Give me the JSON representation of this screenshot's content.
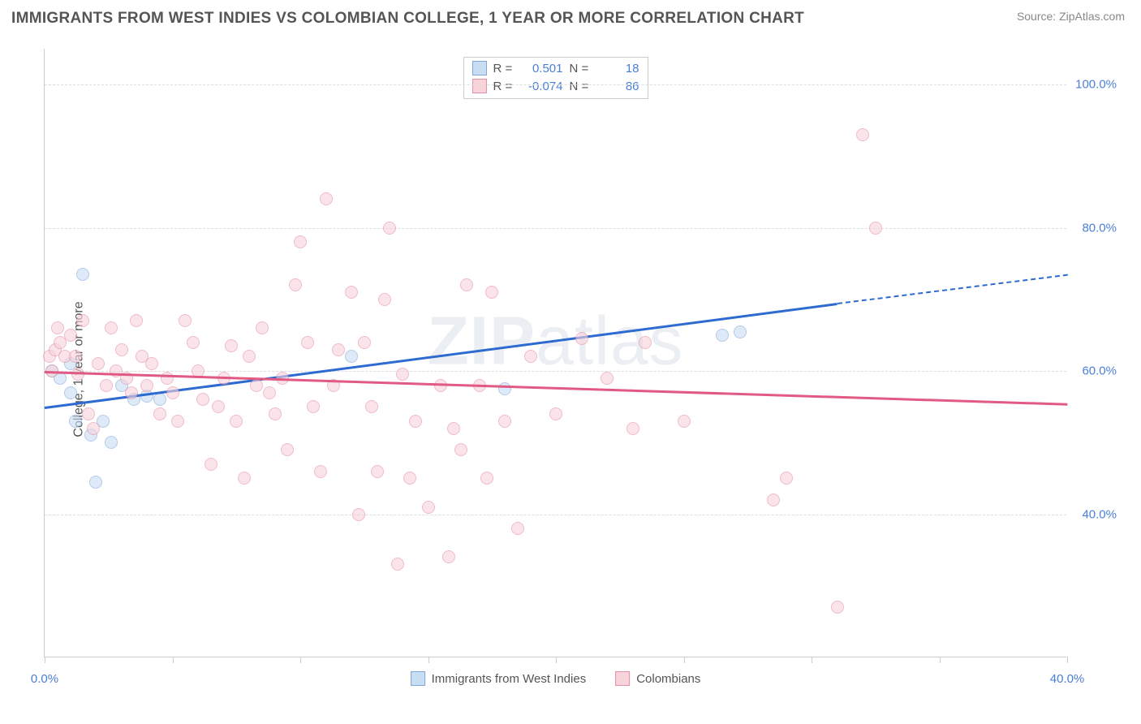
{
  "title": "IMMIGRANTS FROM WEST INDIES VS COLOMBIAN COLLEGE, 1 YEAR OR MORE CORRELATION CHART",
  "source": "Source: ZipAtlas.com",
  "watermark_zip": "ZIP",
  "watermark_atlas": "atlas",
  "y_axis_label": "College, 1 year or more",
  "chart": {
    "type": "scatter",
    "xlim": [
      0,
      40
    ],
    "ylim": [
      20,
      105
    ],
    "x_ticks_pct": [
      0,
      12.5,
      25,
      37.5,
      50,
      62.5,
      75,
      87.5,
      100
    ],
    "x_tick_labels": [
      {
        "pos": 0,
        "text": "0.0%"
      },
      {
        "pos": 100,
        "text": "40.0%"
      }
    ],
    "y_gridlines": [
      {
        "v": 40,
        "label": "40.0%"
      },
      {
        "v": 60,
        "label": "60.0%"
      },
      {
        "v": 80,
        "label": "80.0%"
      },
      {
        "v": 100,
        "label": "100.0%"
      }
    ],
    "grid_color": "#dddddd",
    "axis_color": "#cccccc",
    "background_color": "#ffffff",
    "tick_label_color": "#4a7fd8",
    "marker_diameter": 16,
    "marker_opacity": 0.6,
    "trend_line_width": 3,
    "series": [
      {
        "name": "Immigrants from West Indies",
        "marker_fill": "#c9ddf3",
        "marker_stroke": "#7fa8d9",
        "line_color": "#2e6bd1",
        "R": "0.501",
        "N": "18",
        "trend": {
          "x1": 0,
          "y1": 55,
          "x2": 31,
          "y2": 69.5,
          "dash_x2": 40,
          "dash_y2": 73.5
        },
        "points": [
          {
            "x": 0.3,
            "y": 60
          },
          {
            "x": 0.6,
            "y": 59
          },
          {
            "x": 1.0,
            "y": 61
          },
          {
            "x": 1.2,
            "y": 53
          },
          {
            "x": 1.5,
            "y": 73.5
          },
          {
            "x": 1.8,
            "y": 51
          },
          {
            "x": 2.0,
            "y": 44.5
          },
          {
            "x": 2.3,
            "y": 53
          },
          {
            "x": 2.6,
            "y": 50
          },
          {
            "x": 3.0,
            "y": 58
          },
          {
            "x": 3.5,
            "y": 56
          },
          {
            "x": 4.0,
            "y": 56.5
          },
          {
            "x": 4.5,
            "y": 56
          },
          {
            "x": 12.0,
            "y": 62
          },
          {
            "x": 18.0,
            "y": 57.5
          },
          {
            "x": 26.5,
            "y": 65
          },
          {
            "x": 27.2,
            "y": 65.5
          },
          {
            "x": 1.0,
            "y": 57
          }
        ]
      },
      {
        "name": "Colombians",
        "marker_fill": "#f7d3dc",
        "marker_stroke": "#e68fa6",
        "line_color": "#e05a84",
        "R": "-0.074",
        "N": "86",
        "trend": {
          "x1": 0,
          "y1": 60,
          "x2": 40,
          "y2": 55.5
        },
        "points": [
          {
            "x": 0.2,
            "y": 62
          },
          {
            "x": 0.4,
            "y": 63
          },
          {
            "x": 0.5,
            "y": 66
          },
          {
            "x": 0.6,
            "y": 64
          },
          {
            "x": 0.8,
            "y": 62
          },
          {
            "x": 1.0,
            "y": 65
          },
          {
            "x": 1.2,
            "y": 62
          },
          {
            "x": 1.3,
            "y": 59.5
          },
          {
            "x": 1.5,
            "y": 67
          },
          {
            "x": 1.7,
            "y": 54
          },
          {
            "x": 1.9,
            "y": 52
          },
          {
            "x": 2.1,
            "y": 61
          },
          {
            "x": 2.4,
            "y": 58
          },
          {
            "x": 2.6,
            "y": 66
          },
          {
            "x": 2.8,
            "y": 60
          },
          {
            "x": 3.0,
            "y": 63
          },
          {
            "x": 3.2,
            "y": 59
          },
          {
            "x": 3.4,
            "y": 57
          },
          {
            "x": 3.6,
            "y": 67
          },
          {
            "x": 3.8,
            "y": 62
          },
          {
            "x": 4.0,
            "y": 58
          },
          {
            "x": 4.2,
            "y": 61
          },
          {
            "x": 4.5,
            "y": 54
          },
          {
            "x": 4.8,
            "y": 59
          },
          {
            "x": 5.0,
            "y": 57
          },
          {
            "x": 5.2,
            "y": 53
          },
          {
            "x": 5.5,
            "y": 67
          },
          {
            "x": 5.8,
            "y": 64
          },
          {
            "x": 6.0,
            "y": 60
          },
          {
            "x": 6.2,
            "y": 56
          },
          {
            "x": 6.5,
            "y": 47
          },
          {
            "x": 6.8,
            "y": 55
          },
          {
            "x": 7.0,
            "y": 59
          },
          {
            "x": 7.3,
            "y": 63.5
          },
          {
            "x": 7.5,
            "y": 53
          },
          {
            "x": 7.8,
            "y": 45
          },
          {
            "x": 8.0,
            "y": 62
          },
          {
            "x": 8.3,
            "y": 58
          },
          {
            "x": 8.5,
            "y": 66
          },
          {
            "x": 8.8,
            "y": 57
          },
          {
            "x": 9.0,
            "y": 54
          },
          {
            "x": 9.3,
            "y": 59
          },
          {
            "x": 9.5,
            "y": 49
          },
          {
            "x": 9.8,
            "y": 72
          },
          {
            "x": 10.0,
            "y": 78
          },
          {
            "x": 10.3,
            "y": 64
          },
          {
            "x": 10.5,
            "y": 55
          },
          {
            "x": 10.8,
            "y": 46
          },
          {
            "x": 11.0,
            "y": 84
          },
          {
            "x": 11.3,
            "y": 58
          },
          {
            "x": 11.5,
            "y": 63
          },
          {
            "x": 12.0,
            "y": 71
          },
          {
            "x": 12.3,
            "y": 40
          },
          {
            "x": 12.5,
            "y": 64
          },
          {
            "x": 12.8,
            "y": 55
          },
          {
            "x": 13.0,
            "y": 46
          },
          {
            "x": 13.3,
            "y": 70
          },
          {
            "x": 13.5,
            "y": 80
          },
          {
            "x": 13.8,
            "y": 33
          },
          {
            "x": 14.0,
            "y": 59.5
          },
          {
            "x": 14.3,
            "y": 45
          },
          {
            "x": 14.5,
            "y": 53
          },
          {
            "x": 15.0,
            "y": 41
          },
          {
            "x": 15.5,
            "y": 58
          },
          {
            "x": 15.8,
            "y": 34
          },
          {
            "x": 16.0,
            "y": 52
          },
          {
            "x": 16.3,
            "y": 49
          },
          {
            "x": 16.5,
            "y": 72
          },
          {
            "x": 17.0,
            "y": 58
          },
          {
            "x": 17.3,
            "y": 45
          },
          {
            "x": 17.5,
            "y": 71
          },
          {
            "x": 18.0,
            "y": 53
          },
          {
            "x": 18.5,
            "y": 38
          },
          {
            "x": 19.0,
            "y": 62
          },
          {
            "x": 20.0,
            "y": 54
          },
          {
            "x": 21.0,
            "y": 64.5
          },
          {
            "x": 22.0,
            "y": 59
          },
          {
            "x": 23.0,
            "y": 52
          },
          {
            "x": 23.5,
            "y": 64
          },
          {
            "x": 25.0,
            "y": 53
          },
          {
            "x": 28.5,
            "y": 42
          },
          {
            "x": 29.0,
            "y": 45
          },
          {
            "x": 31.0,
            "y": 27
          },
          {
            "x": 32.0,
            "y": 93
          },
          {
            "x": 32.5,
            "y": 80
          },
          {
            "x": 0.3,
            "y": 60
          }
        ]
      }
    ]
  },
  "stats_labels": {
    "R": "R =",
    "N": "N ="
  },
  "legend": [
    {
      "label": "Immigrants from West Indies",
      "fill": "#c9ddf3",
      "stroke": "#7fa8d9"
    },
    {
      "label": "Colombians",
      "fill": "#f7d3dc",
      "stroke": "#e68fa6"
    }
  ]
}
